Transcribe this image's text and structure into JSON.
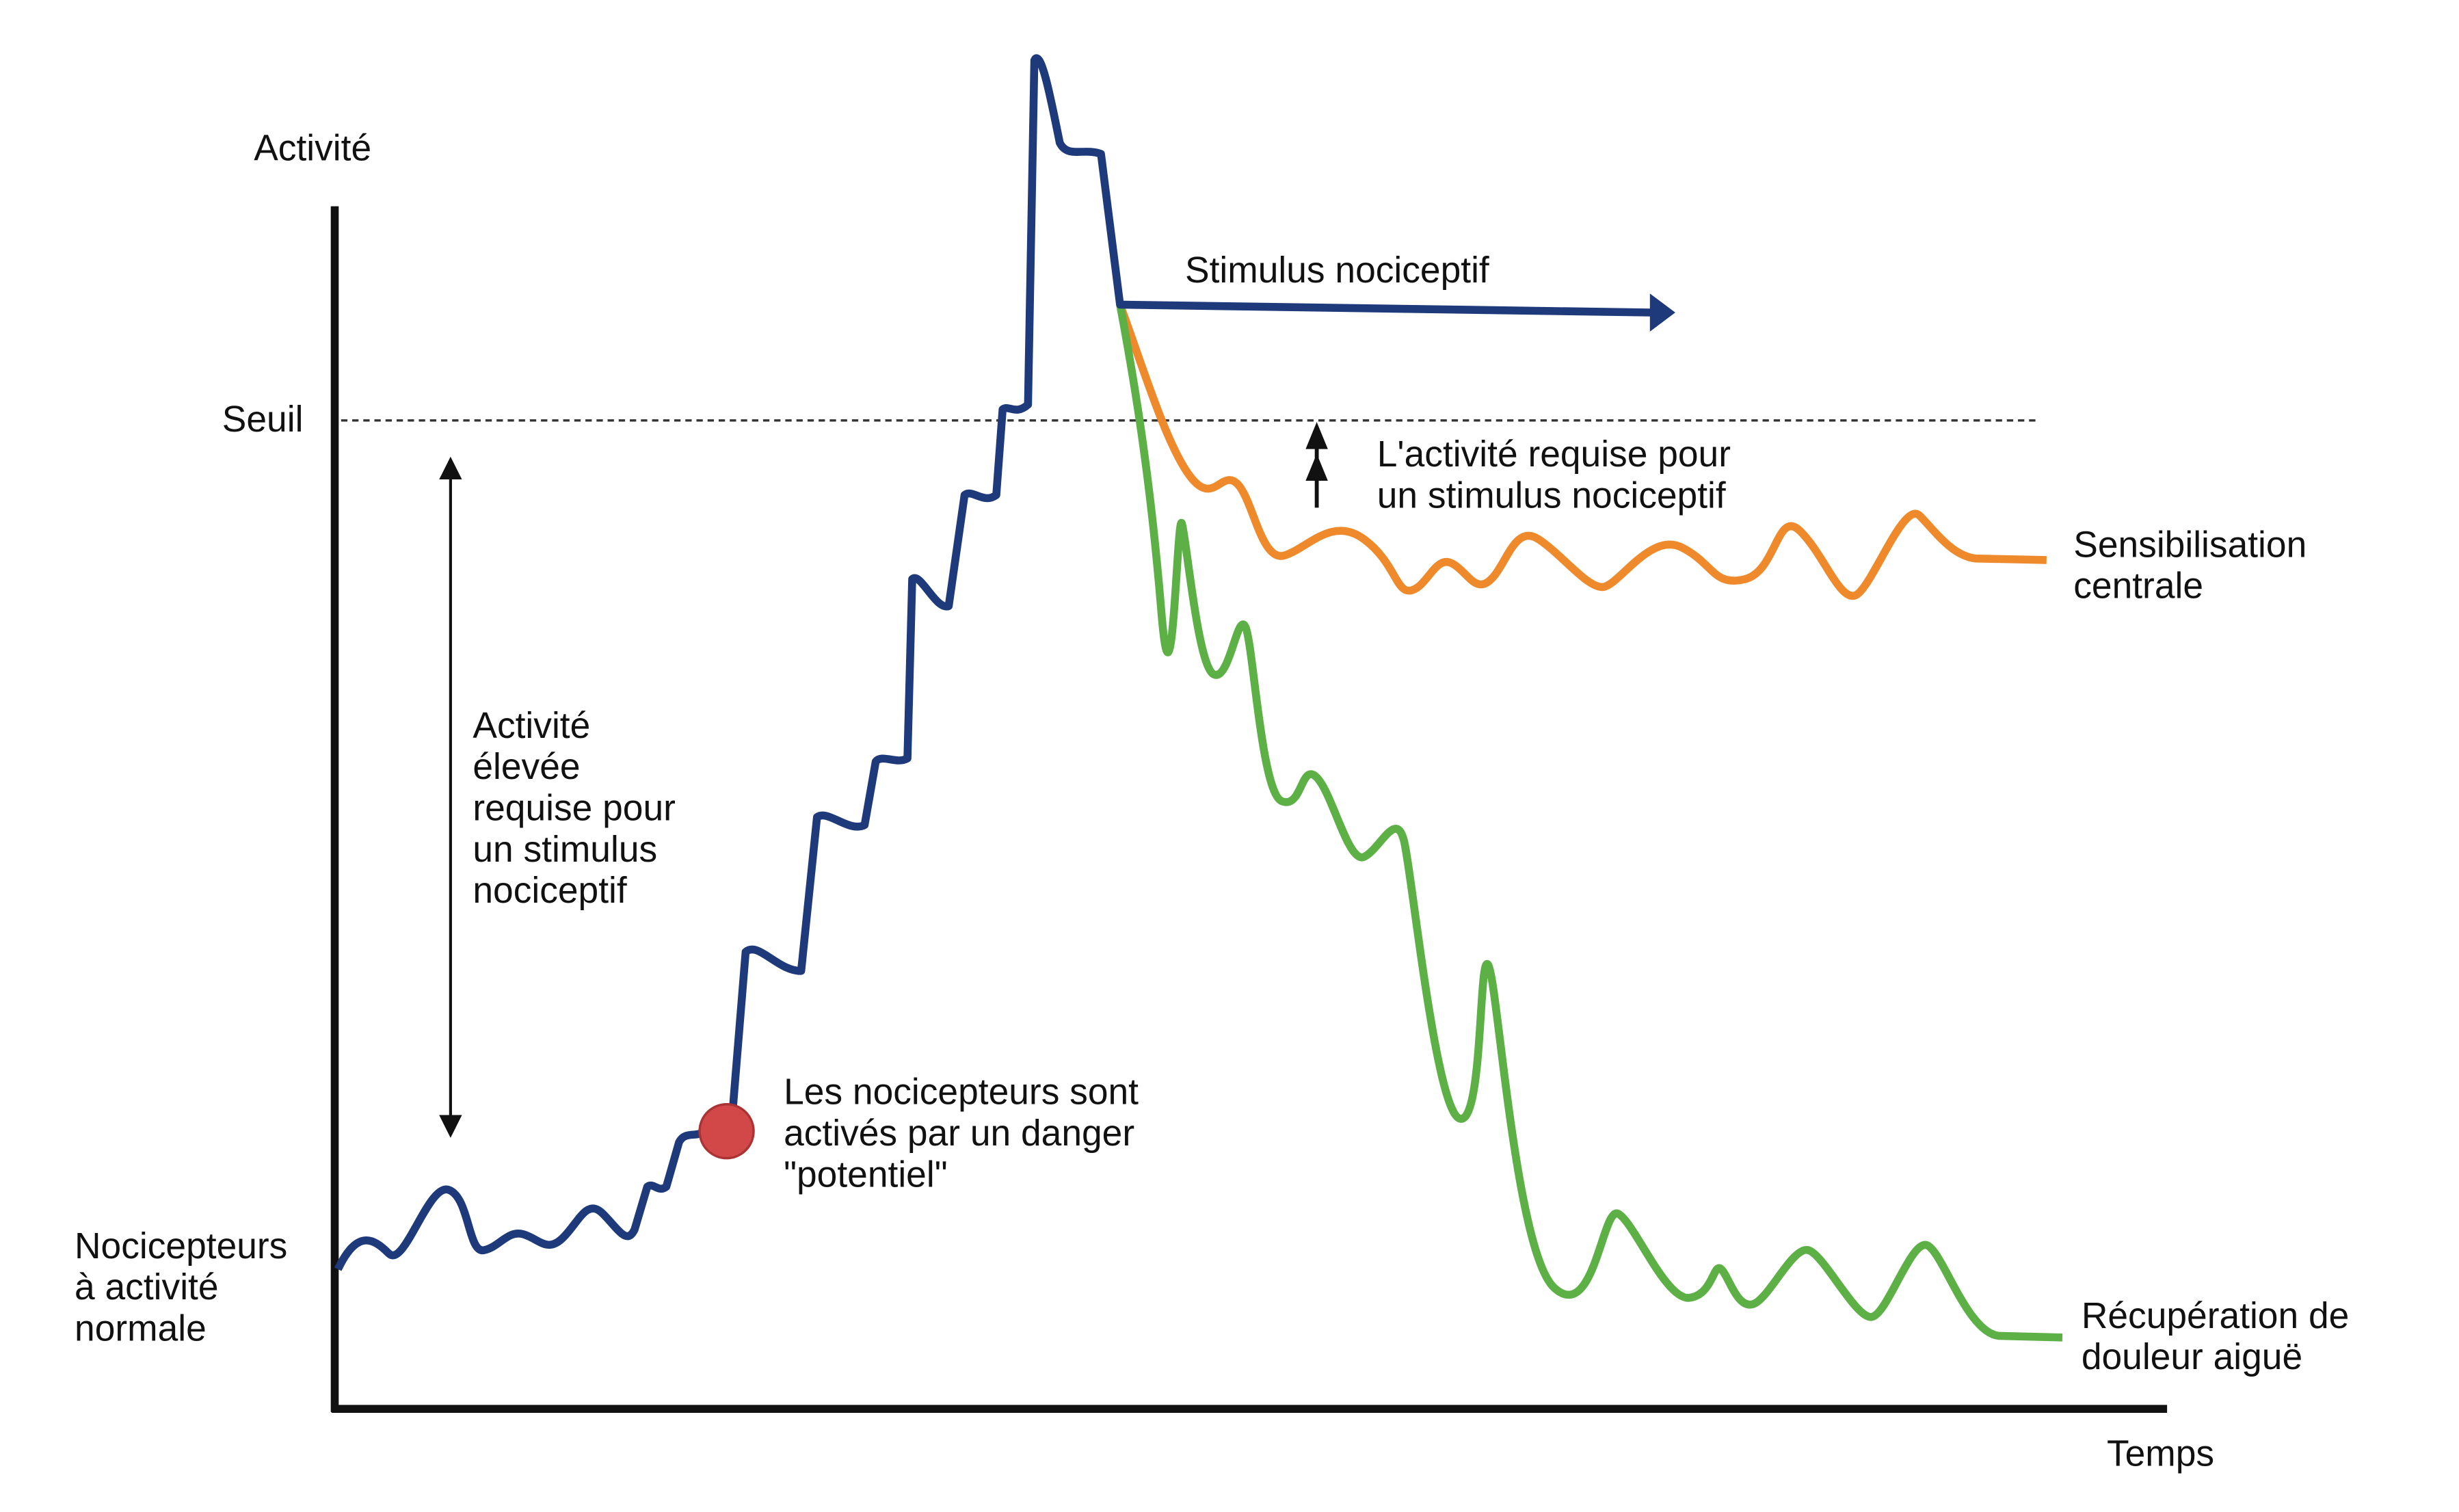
{
  "axes": {
    "y_label": "Activité",
    "x_label": "Temps",
    "threshold_label": "Seuil"
  },
  "annotations": {
    "stimulus": "Stimulus nociceptif",
    "required_activity": [
      "L'activité  requise pour",
      "un stimulus nociceptif"
    ],
    "elevated_activity": [
      "Activité",
      "élevée",
      "requise pour",
      "un stimulus",
      "nociceptif"
    ],
    "activation": [
      "Les nocicepteurs sont",
      "activés par un danger",
      "\"potentiel\""
    ],
    "normal": [
      "Nocicepteurs",
      "à activité",
      "normale"
    ]
  },
  "curves": {
    "sensitization": [
      "Sensibilisation",
      "centrale"
    ],
    "recovery": [
      "Récupération de",
      "douleur aiguë"
    ]
  }
}
